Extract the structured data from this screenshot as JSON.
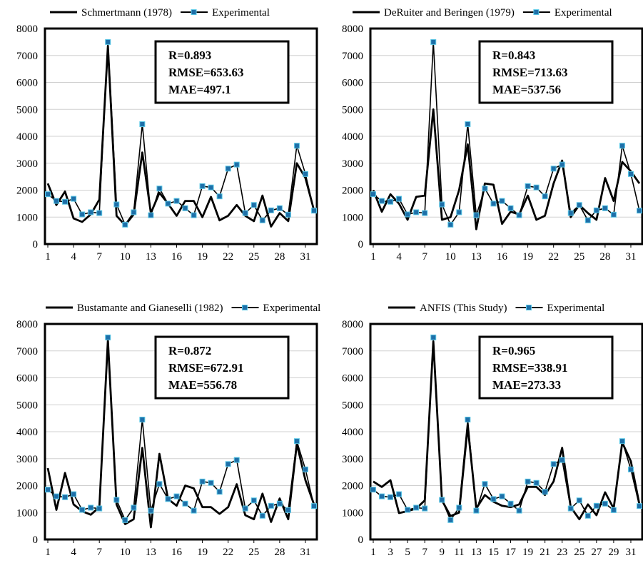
{
  "chart_data": [
    {
      "type": "line",
      "ylim": [
        0,
        8000
      ],
      "yticks": [
        0,
        1000,
        2000,
        3000,
        4000,
        5000,
        6000,
        7000,
        8000
      ],
      "xtick_labels": [
        "1",
        "4",
        "7",
        "10",
        "13",
        "16",
        "19",
        "22",
        "25",
        "28",
        "31"
      ],
      "x": [
        1,
        2,
        3,
        4,
        5,
        6,
        7,
        8,
        9,
        10,
        11,
        12,
        13,
        14,
        15,
        16,
        17,
        18,
        19,
        20,
        21,
        22,
        23,
        24,
        25,
        26,
        27,
        28,
        29,
        30,
        31,
        32
      ],
      "series": [
        {
          "name": "Schmertmann (1978)",
          "color": "#000000",
          "marker": "none",
          "values": [
            2250,
            1450,
            1950,
            950,
            820,
            1100,
            1650,
            7350,
            1050,
            700,
            1100,
            3400,
            1150,
            1900,
            1500,
            1050,
            1600,
            1600,
            1000,
            1750,
            880,
            1050,
            1450,
            1050,
            850,
            1800,
            650,
            1150,
            850,
            3000,
            2450,
            1250
          ]
        },
        {
          "name": "Experimental",
          "color": "#000000",
          "marker": "square",
          "values": [
            1850,
            1600,
            1570,
            1680,
            1100,
            1180,
            1150,
            7500,
            1470,
            720,
            1180,
            4450,
            1070,
            2060,
            1500,
            1600,
            1330,
            1070,
            2150,
            2100,
            1770,
            2800,
            2950,
            1150,
            1450,
            880,
            1250,
            1330,
            1090,
            3650,
            2600,
            1240
          ]
        }
      ],
      "stats": [
        "R=0.893",
        "RMSE=653.63",
        "MAE=497.1"
      ],
      "grid": true,
      "legend": "top"
    },
    {
      "type": "line",
      "ylim": [
        0,
        8000
      ],
      "yticks": [
        0,
        1000,
        2000,
        3000,
        4000,
        5000,
        6000,
        7000,
        8000
      ],
      "xtick_labels": [
        "1",
        "4",
        "7",
        "10",
        "13",
        "16",
        "19",
        "22",
        "25",
        "28",
        "31"
      ],
      "x": [
        1,
        2,
        3,
        4,
        5,
        6,
        7,
        8,
        9,
        10,
        11,
        12,
        13,
        14,
        15,
        16,
        17,
        18,
        19,
        20,
        21,
        22,
        23,
        24,
        25,
        26,
        27,
        28,
        29,
        30,
        31,
        32
      ],
      "series": [
        {
          "name": "DeRuiter and Beringen (1979)",
          "color": "#000000",
          "marker": "none",
          "values": [
            2000,
            1200,
            1850,
            1500,
            900,
            1750,
            1800,
            5000,
            900,
            1000,
            2000,
            3700,
            550,
            2250,
            2200,
            750,
            1200,
            1100,
            1800,
            900,
            1050,
            2250,
            3100,
            1000,
            1450,
            1150,
            900,
            2450,
            1600,
            3050,
            2700,
            2250
          ]
        },
        {
          "name": "Experimental",
          "color": "#000000",
          "marker": "square",
          "values": [
            1850,
            1600,
            1570,
            1680,
            1100,
            1180,
            1150,
            7500,
            1470,
            720,
            1180,
            4450,
            1070,
            2060,
            1500,
            1600,
            1330,
            1070,
            2150,
            2100,
            1770,
            2800,
            2950,
            1150,
            1450,
            880,
            1250,
            1330,
            1090,
            3650,
            2600,
            1240
          ]
        }
      ],
      "stats": [
        "R=0.843",
        "RMSE=713.63",
        "MAE=537.56"
      ],
      "grid": true,
      "legend": "top"
    },
    {
      "type": "line",
      "ylim": [
        0,
        8000
      ],
      "yticks": [
        0,
        1000,
        2000,
        3000,
        4000,
        5000,
        6000,
        7000,
        8000
      ],
      "xtick_labels": [
        "1",
        "4",
        "7",
        "10",
        "13",
        "16",
        "19",
        "22",
        "25",
        "28",
        "31"
      ],
      "x": [
        1,
        2,
        3,
        4,
        5,
        6,
        7,
        8,
        9,
        10,
        11,
        12,
        13,
        14,
        15,
        16,
        17,
        18,
        19,
        20,
        21,
        22,
        23,
        24,
        25,
        26,
        27,
        28,
        29,
        30,
        31,
        32
      ],
      "series": [
        {
          "name": "Bustamante and Gianeselli (1982)",
          "color": "#000000",
          "marker": "none",
          "values": [
            2650,
            1100,
            2470,
            1300,
            1050,
            920,
            1200,
            7400,
            1300,
            570,
            750,
            3400,
            450,
            3180,
            1500,
            1250,
            2000,
            1900,
            1200,
            1200,
            950,
            1200,
            2050,
            900,
            750,
            1700,
            650,
            1520,
            750,
            3550,
            2200,
            1300
          ]
        },
        {
          "name": "Experimental",
          "color": "#000000",
          "marker": "square",
          "values": [
            1850,
            1600,
            1570,
            1680,
            1100,
            1180,
            1150,
            7500,
            1470,
            720,
            1180,
            4450,
            1070,
            2060,
            1500,
            1600,
            1330,
            1070,
            2150,
            2100,
            1770,
            2800,
            2950,
            1150,
            1450,
            880,
            1250,
            1330,
            1090,
            3650,
            2600,
            1240
          ]
        }
      ],
      "stats": [
        "R=0.872",
        "RMSE=672.91",
        "MAE=556.78"
      ],
      "grid": true,
      "legend": "top"
    },
    {
      "type": "line",
      "ylim": [
        0,
        8000
      ],
      "yticks": [
        0,
        1000,
        2000,
        3000,
        4000,
        5000,
        6000,
        7000,
        8000
      ],
      "xtick_labels": [
        "1",
        "3",
        "5",
        "7",
        "9",
        "11",
        "13",
        "15",
        "17",
        "19",
        "21",
        "23",
        "25",
        "27",
        "29",
        "31"
      ],
      "x": [
        1,
        2,
        3,
        4,
        5,
        6,
        7,
        8,
        9,
        10,
        11,
        12,
        13,
        14,
        15,
        16,
        17,
        18,
        19,
        20,
        21,
        22,
        23,
        24,
        25,
        26,
        27,
        28,
        29,
        30,
        31,
        32
      ],
      "series": [
        {
          "name": "ANFIS (This Study)",
          "color": "#000000",
          "marker": "none",
          "values": [
            2150,
            1950,
            2200,
            980,
            1050,
            1150,
            1450,
            7350,
            1450,
            870,
            1000,
            4200,
            1150,
            1650,
            1400,
            1250,
            1200,
            1300,
            1950,
            1950,
            1650,
            2150,
            3400,
            1200,
            750,
            1300,
            900,
            1750,
            1150,
            3600,
            2900,
            1300
          ]
        },
        {
          "name": "Experimental",
          "color": "#000000",
          "marker": "square",
          "values": [
            1850,
            1600,
            1570,
            1680,
            1100,
            1180,
            1150,
            7500,
            1470,
            720,
            1180,
            4450,
            1070,
            2060,
            1500,
            1600,
            1330,
            1070,
            2150,
            2100,
            1770,
            2800,
            2950,
            1150,
            1450,
            880,
            1250,
            1330,
            1090,
            3650,
            2600,
            1240
          ]
        }
      ],
      "stats": [
        "R=0.965",
        "RMSE=338.91",
        "MAE=273.33"
      ],
      "grid": true,
      "legend": "top"
    }
  ],
  "colors": {
    "model_line": "#000000",
    "experimental_line": "#000000",
    "experimental_marker_fill": "#1e6fa8",
    "experimental_marker_edge": "#5bc8e6",
    "grid": "#d0d0d0"
  }
}
